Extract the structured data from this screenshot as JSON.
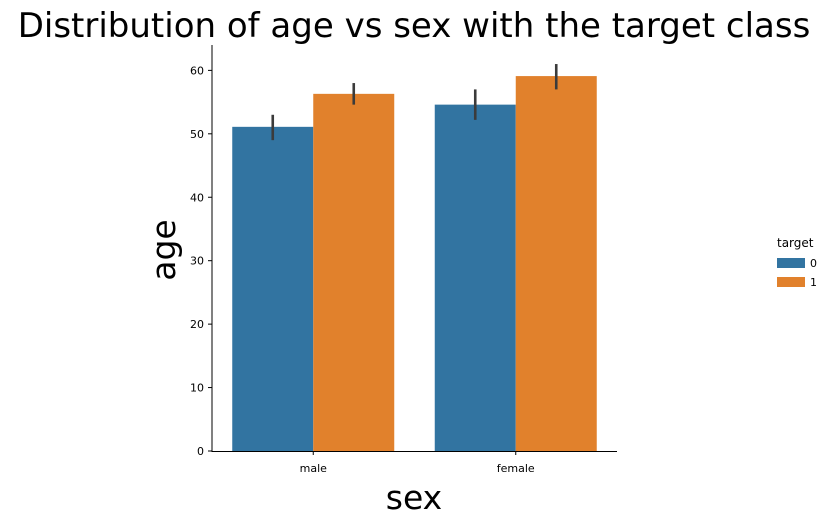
{
  "chart_data": {
    "type": "bar",
    "title": "Distribution of age vs sex with the target class",
    "xlabel": "sex",
    "ylabel": "age",
    "categories": [
      "male",
      "female"
    ],
    "series": [
      {
        "name": "0",
        "values": [
          51.1,
          54.6
        ],
        "ci": [
          [
            49.0,
            53.0
          ],
          [
            52.2,
            57.0
          ]
        ]
      },
      {
        "name": "1",
        "values": [
          56.3,
          59.1
        ],
        "ci": [
          [
            54.6,
            58.0
          ],
          [
            57.0,
            61.0
          ]
        ]
      }
    ],
    "ylim": [
      0,
      64
    ],
    "yticks": [
      0,
      10,
      20,
      30,
      40,
      50,
      60
    ],
    "grid": false,
    "legend": {
      "title": "target",
      "placement": "right"
    },
    "colors": [
      "#3274a1",
      "#e1812c"
    ],
    "errorbar_color": "#3b3b3b"
  }
}
